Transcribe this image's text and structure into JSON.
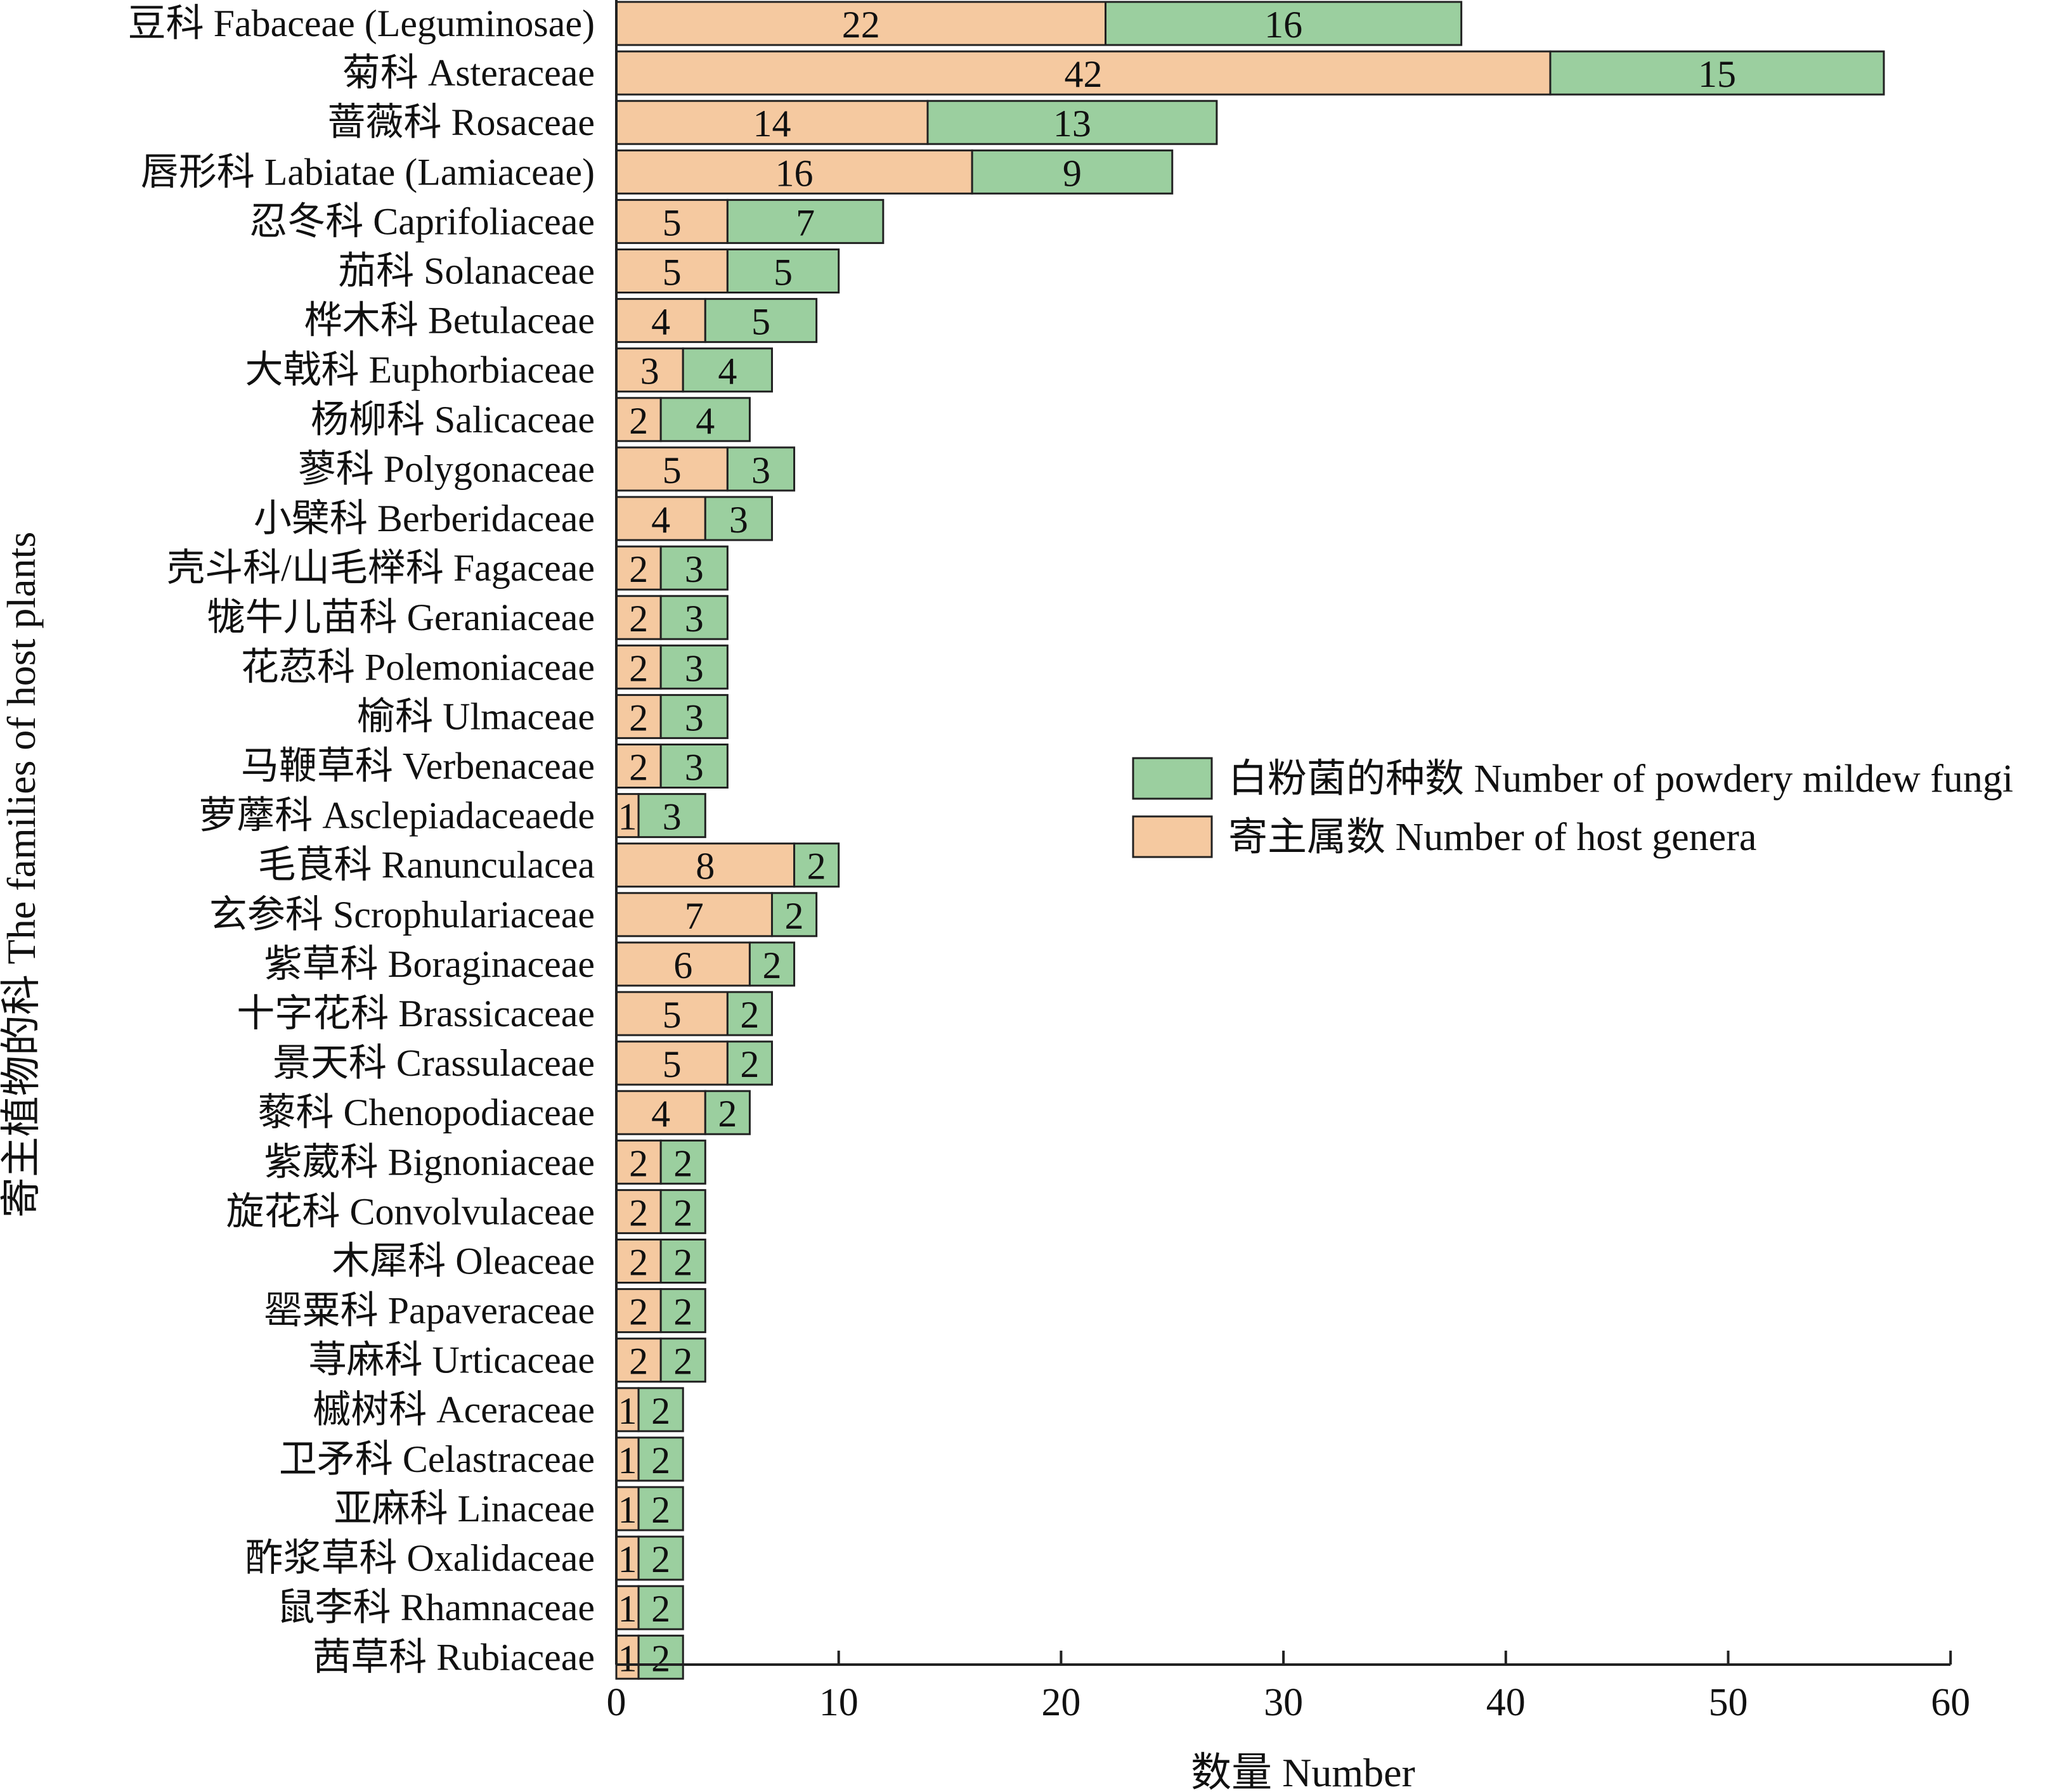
{
  "chart_data": {
    "type": "bar",
    "orientation": "horizontal",
    "stacked": true,
    "xlabel": "数量 Number",
    "ylabel": "寄主植物的科 The families of host plants",
    "xlim": [
      0,
      60
    ],
    "xticks": [
      0,
      10,
      20,
      30,
      40,
      50,
      60
    ],
    "grid": false,
    "legend_position": "right",
    "categories": [
      "豆科 Fabaceae (Leguminosae)",
      "菊科 Asteraceae",
      "蔷薇科 Rosaceae",
      "唇形科 Labiatae (Lamiaceae)",
      "忍冬科 Caprifoliaceae",
      "茄科 Solanaceae",
      "桦木科 Betulaceae",
      "大戟科 Euphorbiaceae",
      "杨柳科 Salicaceae",
      "蓼科 Polygonaceae",
      "小檗科 Berberidaceae",
      "壳斗科/山毛榉科 Fagaceae",
      "牻牛儿苗科 Geraniaceae",
      "花荵科 Polemoniaceae",
      "榆科 Ulmaceae",
      "马鞭草科 Verbenaceae",
      "萝藦科 Asclepiadaceaede",
      "毛茛科 Ranunculacea",
      "玄参科 Scrophulariaceae",
      "紫草科 Boraginaceae",
      "十字花科 Brassicaceae",
      "景天科 Crassulaceae",
      "藜科 Chenopodiaceae",
      "紫葳科 Bignoniaceae",
      "旋花科 Convolvulaceae",
      "木犀科 Oleaceae",
      "罂粟科 Papaveraceae",
      "荨麻科 Urticaceae",
      "槭树科 Aceraceae",
      "卫矛科 Celastraceae",
      "亚麻科 Linaceae",
      "酢浆草科 Oxalidaceae",
      "鼠李科 Rhamnaceae",
      "茜草科 Rubiaceae"
    ],
    "series": [
      {
        "name": "寄主属数 Number of host genera",
        "color": "#f5c9a0",
        "values": [
          22,
          42,
          14,
          16,
          5,
          5,
          4,
          3,
          2,
          5,
          4,
          2,
          2,
          2,
          2,
          2,
          1,
          8,
          7,
          6,
          5,
          5,
          4,
          2,
          2,
          2,
          2,
          2,
          1,
          1,
          1,
          1,
          1,
          1
        ]
      },
      {
        "name": "白粉菌的种数 Number of powdery mildew fungi",
        "color": "#9bcf9f",
        "values": [
          16,
          15,
          13,
          9,
          7,
          5,
          5,
          4,
          4,
          3,
          3,
          3,
          3,
          3,
          3,
          3,
          3,
          2,
          2,
          2,
          2,
          2,
          2,
          2,
          2,
          2,
          2,
          2,
          2,
          2,
          2,
          2,
          2,
          2
        ]
      }
    ]
  }
}
